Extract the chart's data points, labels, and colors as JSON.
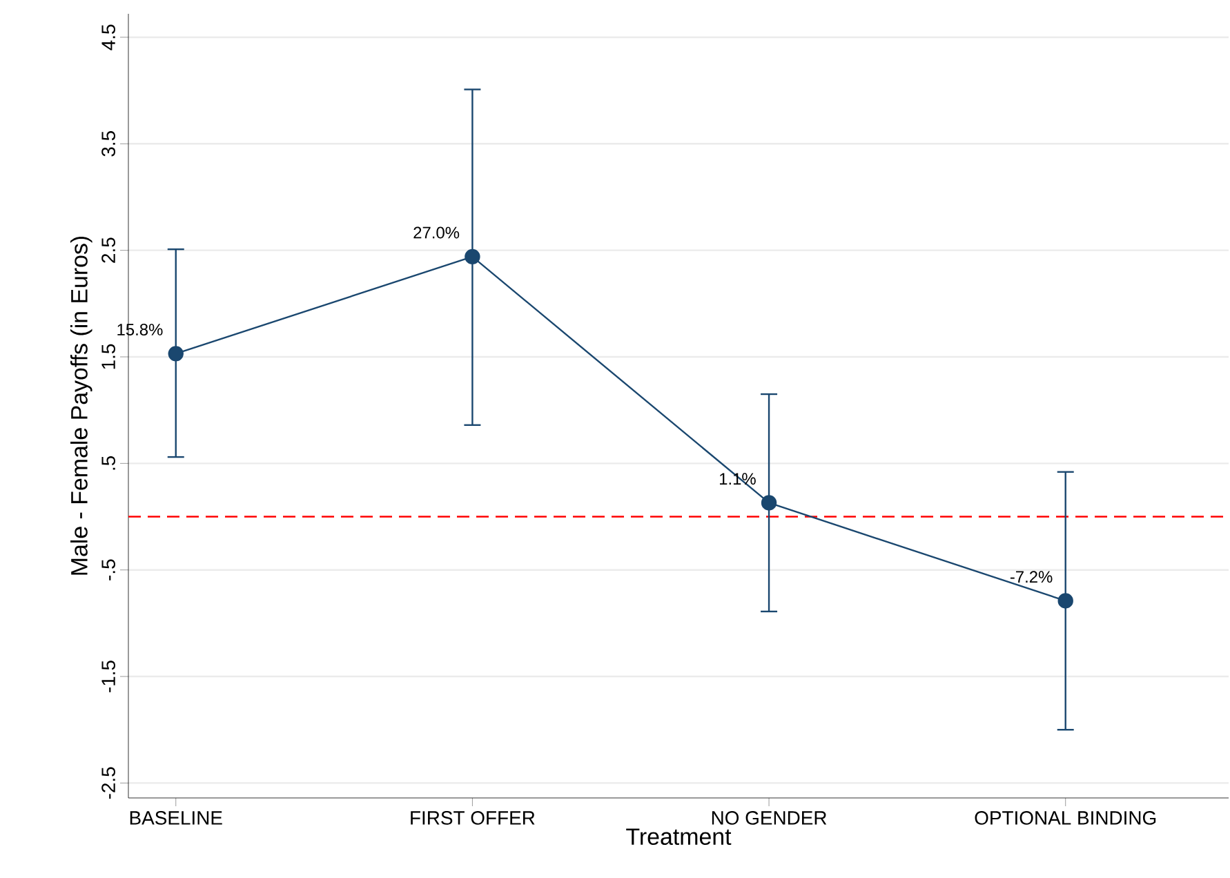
{
  "chart_data": {
    "type": "line",
    "xlabel": "Treatment",
    "ylabel": "Male - Female Payoffs (in Euros)",
    "categories": [
      "BASELINE",
      "FIRST OFFER",
      "NO GENDER",
      "OPTIONAL BINDING"
    ],
    "values": [
      1.53,
      2.44,
      0.13,
      -0.79
    ],
    "errors": [
      [
        0.56,
        2.51
      ],
      [
        0.86,
        4.01
      ],
      [
        -0.89,
        1.15
      ],
      [
        -2.0,
        0.42
      ]
    ],
    "annotations": [
      {
        "text": "15.8%",
        "x": "BASELINE",
        "y": 1.53
      },
      {
        "text": "27.0%",
        "x": "FIRST OFFER",
        "y": 2.44
      },
      {
        "text": "1.1%",
        "x": "NO GENDER",
        "y": 0.13
      },
      {
        "text": "-7.2%",
        "x": "OPTIONAL BINDING",
        "y": -0.79
      }
    ],
    "color": "#1a476f",
    "marker": "circle",
    "line_style": "solid",
    "ylim": [
      -2.64,
      4.72
    ],
    "yticks": [
      {
        "value": 4.5,
        "label": "4.5"
      },
      {
        "value": 3.5,
        "label": "3.5"
      },
      {
        "value": 2.5,
        "label": "2.5"
      },
      {
        "value": 1.5,
        "label": "1.5"
      },
      {
        "value": 0.5,
        "label": ".5"
      },
      {
        "value": -0.5,
        "label": "-.5"
      },
      {
        "value": -1.5,
        "label": "-1.5"
      },
      {
        "value": -2.5,
        "label": "-2.5"
      }
    ],
    "ref_lines": [
      {
        "axis": "y",
        "value": 0,
        "color": "#ff0000",
        "line_style": "dashed"
      }
    ],
    "grid": "y"
  }
}
